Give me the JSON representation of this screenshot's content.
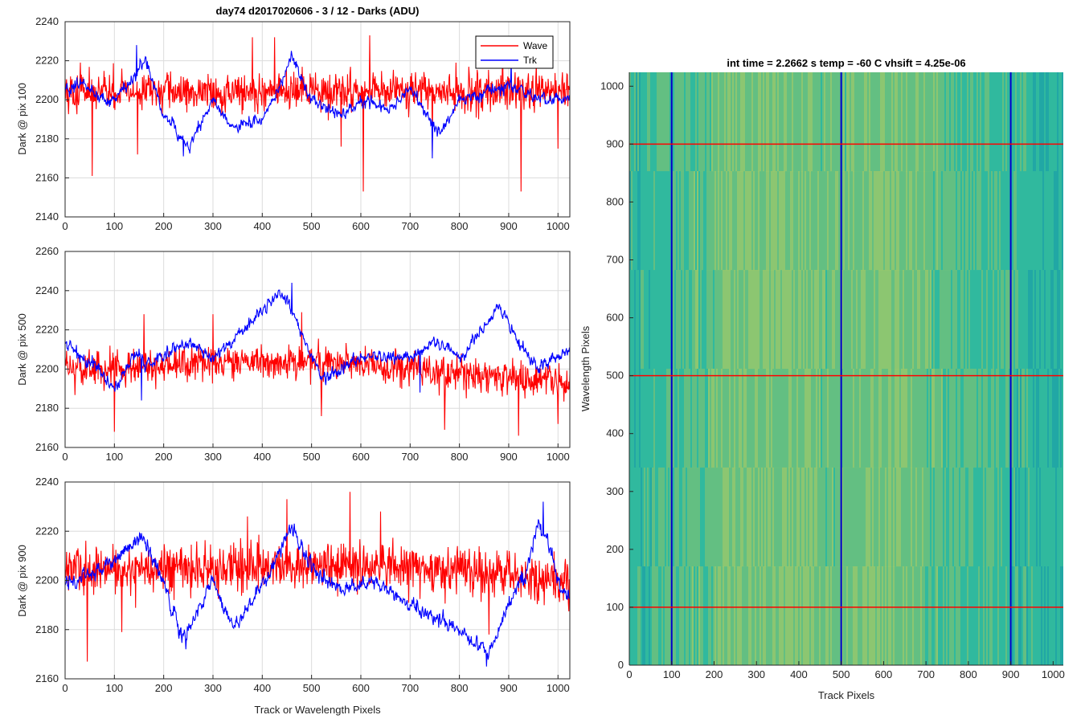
{
  "figure": {
    "title": "day74 d2017020606 - 3 / 12 - Darks (ADU)",
    "legend_wave": "Wave",
    "legend_trk": "Trk",
    "colors": {
      "wave": "#ff0000",
      "trk": "#0000ff"
    }
  },
  "chart_data": [
    {
      "type": "line",
      "title": "day74 d2017020606 - 3 / 12 - Darks (ADU)",
      "xlabel": "",
      "ylabel": "Dark @ pix 100",
      "xlim": [
        0,
        1024
      ],
      "ylim": [
        2140,
        2240
      ],
      "xticks": [
        0,
        100,
        200,
        300,
        400,
        500,
        600,
        700,
        800,
        900,
        1000
      ],
      "yticks": [
        2140,
        2160,
        2180,
        2200,
        2220,
        2240
      ],
      "grid": true,
      "legend": "top-right",
      "series": [
        {
          "name": "Wave",
          "color": "#ff0000",
          "mean": 2204,
          "noise": 9,
          "anchors": [
            [
              0,
              2204
            ],
            [
              1024,
              2204
            ]
          ],
          "spikes": [
            [
              55,
              2161
            ],
            [
              147,
              2172
            ],
            [
              380,
              2232
            ],
            [
              425,
              2232
            ],
            [
              560,
              2176
            ],
            [
              605,
              2153
            ],
            [
              618,
              2233
            ],
            [
              745,
              2174
            ],
            [
              925,
              2153
            ],
            [
              1000,
              2175
            ]
          ]
        },
        {
          "name": "Trk",
          "color": "#0000ff",
          "mean": 2200,
          "noise": 5,
          "anchors": [
            [
              0,
              2205
            ],
            [
              40,
              2208
            ],
            [
              90,
              2198
            ],
            [
              140,
              2210
            ],
            [
              160,
              2222
            ],
            [
              200,
              2193
            ],
            [
              250,
              2176
            ],
            [
              300,
              2200
            ],
            [
              340,
              2186
            ],
            [
              400,
              2190
            ],
            [
              440,
              2208
            ],
            [
              460,
              2222
            ],
            [
              500,
              2200
            ],
            [
              560,
              2192
            ],
            [
              600,
              2200
            ],
            [
              660,
              2195
            ],
            [
              700,
              2206
            ],
            [
              760,
              2182
            ],
            [
              800,
              2200
            ],
            [
              900,
              2207
            ],
            [
              960,
              2200
            ],
            [
              1024,
              2200
            ]
          ],
          "spikes": [
            [
              145,
              2228
            ],
            [
              240,
              2171
            ],
            [
              745,
              2170
            ],
            [
              905,
              2222
            ]
          ]
        }
      ]
    },
    {
      "type": "line",
      "title": "",
      "xlabel": "",
      "ylabel": "Dark @ pix 500",
      "xlim": [
        0,
        1024
      ],
      "ylim": [
        2160,
        2260
      ],
      "xticks": [
        0,
        100,
        200,
        300,
        400,
        500,
        600,
        700,
        800,
        900,
        1000
      ],
      "yticks": [
        2160,
        2180,
        2200,
        2220,
        2240,
        2260
      ],
      "grid": true,
      "series": [
        {
          "name": "Wave",
          "color": "#ff0000",
          "mean": 2202,
          "noise": 8,
          "anchors": [
            [
              0,
              2200
            ],
            [
              500,
              2204
            ],
            [
              800,
              2198
            ],
            [
              1024,
              2192
            ]
          ],
          "spikes": [
            [
              100,
              2168
            ],
            [
              160,
              2228
            ],
            [
              300,
              2228
            ],
            [
              480,
              2229
            ],
            [
              520,
              2176
            ],
            [
              770,
              2169
            ],
            [
              920,
              2166
            ],
            [
              1000,
              2172
            ]
          ]
        },
        {
          "name": "Trk",
          "color": "#0000ff",
          "mean": 2206,
          "noise": 5,
          "anchors": [
            [
              0,
              2212
            ],
            [
              60,
              2202
            ],
            [
              100,
              2190
            ],
            [
              150,
              2210
            ],
            [
              160,
              2202
            ],
            [
              250,
              2214
            ],
            [
              300,
              2204
            ],
            [
              360,
              2220
            ],
            [
              440,
              2240
            ],
            [
              480,
              2218
            ],
            [
              520,
              2195
            ],
            [
              600,
              2206
            ],
            [
              700,
              2206
            ],
            [
              750,
              2214
            ],
            [
              800,
              2205
            ],
            [
              860,
              2225
            ],
            [
              880,
              2233
            ],
            [
              920,
              2214
            ],
            [
              960,
              2200
            ],
            [
              1024,
              2210
            ]
          ],
          "spikes": [
            [
              460,
              2244
            ],
            [
              155,
              2184
            ],
            [
              720,
              2188
            ]
          ]
        }
      ]
    },
    {
      "type": "line",
      "title": "",
      "xlabel": "Track or Wavelength Pixels",
      "ylabel": "Dark @ pix 900",
      "xlim": [
        0,
        1024
      ],
      "ylim": [
        2160,
        2240
      ],
      "xticks": [
        0,
        100,
        200,
        300,
        400,
        500,
        600,
        700,
        800,
        900,
        1000
      ],
      "yticks": [
        2160,
        2180,
        2200,
        2220,
        2240
      ],
      "grid": true,
      "series": [
        {
          "name": "Wave",
          "color": "#ff0000",
          "mean": 2205,
          "noise": 9,
          "anchors": [
            [
              0,
              2204
            ],
            [
              600,
              2206
            ],
            [
              800,
              2204
            ],
            [
              1024,
              2200
            ]
          ],
          "spikes": [
            [
              45,
              2167
            ],
            [
              115,
              2179
            ],
            [
              370,
              2226
            ],
            [
              450,
              2233
            ],
            [
              578,
              2236
            ],
            [
              640,
              2228
            ],
            [
              860,
              2178
            ],
            [
              950,
              2205
            ]
          ]
        },
        {
          "name": "Trk",
          "color": "#0000ff",
          "mean": 2200,
          "noise": 5,
          "anchors": [
            [
              0,
              2198
            ],
            [
              100,
              2208
            ],
            [
              160,
              2218
            ],
            [
              200,
              2198
            ],
            [
              240,
              2176
            ],
            [
              300,
              2200
            ],
            [
              340,
              2180
            ],
            [
              420,
              2205
            ],
            [
              460,
              2222
            ],
            [
              500,
              2205
            ],
            [
              560,
              2196
            ],
            [
              620,
              2200
            ],
            [
              700,
              2190
            ],
            [
              780,
              2182
            ],
            [
              860,
              2170
            ],
            [
              900,
              2190
            ],
            [
              940,
              2205
            ],
            [
              960,
              2224
            ],
            [
              980,
              2216
            ],
            [
              1000,
              2200
            ],
            [
              1024,
              2192
            ]
          ],
          "spikes": [
            [
              970,
              2232
            ],
            [
              855,
              2165
            ],
            [
              245,
              2172
            ]
          ]
        }
      ]
    },
    {
      "type": "heatmap",
      "title": "int time = 2.2662 s    temp = -60 C    vhsift = 4.25e-06",
      "xlabel": "Track Pixels",
      "ylabel": "Wavelength Pixels",
      "xlim": [
        0,
        1024
      ],
      "ylim": [
        0,
        1024
      ],
      "xticks": [
        0,
        100,
        200,
        300,
        400,
        500,
        600,
        700,
        800,
        900,
        1000
      ],
      "yticks": [
        0,
        100,
        200,
        300,
        400,
        500,
        600,
        700,
        800,
        900,
        1000
      ],
      "colormap": [
        "#1fa3a6",
        "#30b89e",
        "#6cc07c",
        "#9cc868",
        "#c9c85a"
      ],
      "vertical_lines": [
        100,
        500,
        900
      ],
      "horizontal_lines": [
        100,
        500,
        900
      ],
      "vertical_line_color": "#0000cc",
      "horizontal_line_color": "#ff0000"
    }
  ]
}
